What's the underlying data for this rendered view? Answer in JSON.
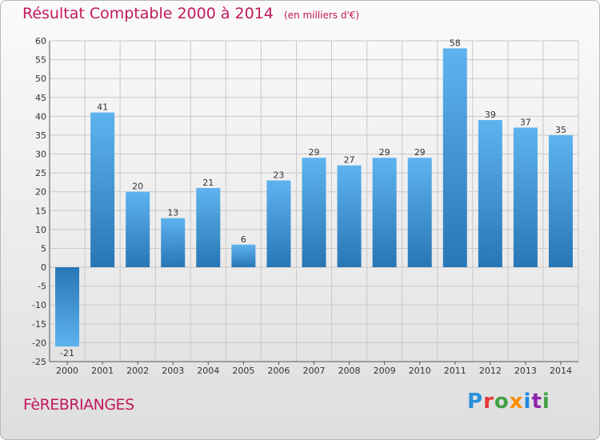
{
  "header": {
    "title": "Résultat Comptable 2000 à 2014",
    "subtitle": "(en milliers d'€)"
  },
  "footer": {
    "commune": "FèREBRIANGES",
    "logo_letters": [
      "P",
      "r",
      "o",
      "x",
      "i",
      "t",
      "i"
    ]
  },
  "colors": {
    "title": "#c2185b",
    "bar_light": "#5aafea",
    "bar_dark": "#2a7ab9",
    "grid": "#c8c8c8"
  },
  "chart_data": {
    "type": "bar",
    "title": "Résultat Comptable 2000 à 2014",
    "subtitle": "(en milliers d'€)",
    "categories": [
      "2000",
      "2001",
      "2002",
      "2003",
      "2004",
      "2005",
      "2006",
      "2007",
      "2008",
      "2009",
      "2010",
      "2011",
      "2012",
      "2013",
      "2014"
    ],
    "values": [
      -21,
      41,
      20,
      13,
      21,
      6,
      23,
      29,
      27,
      29,
      29,
      58,
      39,
      37,
      35
    ],
    "ylim": [
      -25,
      60
    ],
    "yticks": [
      60,
      55,
      50,
      45,
      40,
      35,
      30,
      25,
      20,
      15,
      10,
      5,
      0,
      -5,
      -10,
      -15,
      -20,
      -25
    ],
    "grid": true
  }
}
